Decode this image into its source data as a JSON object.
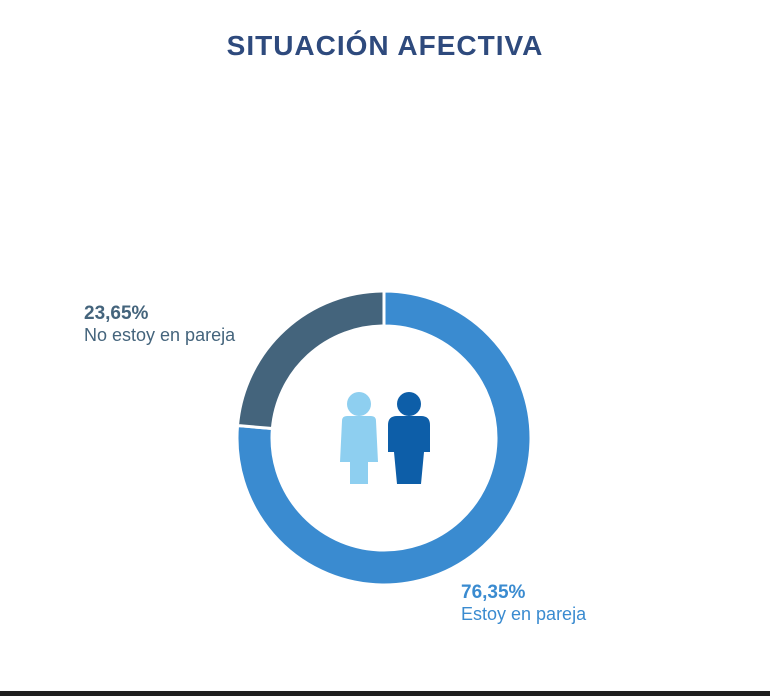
{
  "title": "SITUACIÓN AFECTIVA",
  "chart_data": {
    "type": "pie",
    "variant": "donut",
    "title": "SITUACIÓN AFECTIVA",
    "start": "top",
    "direction": "clockwise",
    "slices": [
      {
        "label": "Estoy en pareja",
        "value": 76.35,
        "value_label": "76,35%",
        "color": "#3a8bd0"
      },
      {
        "label": "No estoy en pareja",
        "value": 23.65,
        "value_label": "23,65%",
        "color": "#44647c"
      }
    ],
    "center_icon": "couple-icon",
    "icon_colors": {
      "female": "#8ecff0",
      "male": "#0d5ea8"
    }
  }
}
